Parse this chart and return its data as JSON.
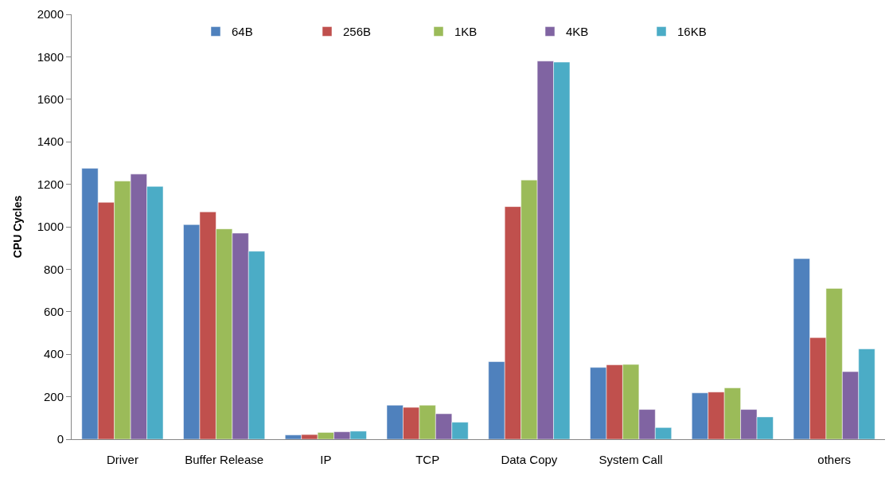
{
  "chart_data": {
    "type": "bar",
    "ylabel": "CPU Cycles",
    "categories": [
      "Driver",
      "Buffer Release",
      "IP",
      "TCP",
      "Data Copy",
      "System Call",
      null,
      "others"
    ],
    "series": [
      {
        "name": "64B",
        "color": "#4f81bd",
        "values": [
          1275,
          1010,
          20,
          160,
          365,
          338,
          218,
          850
        ]
      },
      {
        "name": "256B",
        "color": "#c0504d",
        "values": [
          1115,
          1070,
          22,
          150,
          1095,
          350,
          222,
          478
        ]
      },
      {
        "name": "1KB",
        "color": "#9bbb59",
        "values": [
          1215,
          990,
          32,
          160,
          1220,
          352,
          242,
          710
        ]
      },
      {
        "name": "4KB",
        "color": "#8064a2",
        "values": [
          1248,
          970,
          35,
          120,
          1780,
          140,
          140,
          318
        ]
      },
      {
        "name": "16KB",
        "color": "#4bacc6",
        "values": [
          1190,
          885,
          38,
          80,
          1775,
          55,
          105,
          425
        ]
      }
    ],
    "ylim": [
      0,
      2000
    ],
    "yticks": [
      0,
      200,
      400,
      600,
      800,
      1000,
      1200,
      1400,
      1600,
      1800,
      2000
    ],
    "legend": "top"
  }
}
